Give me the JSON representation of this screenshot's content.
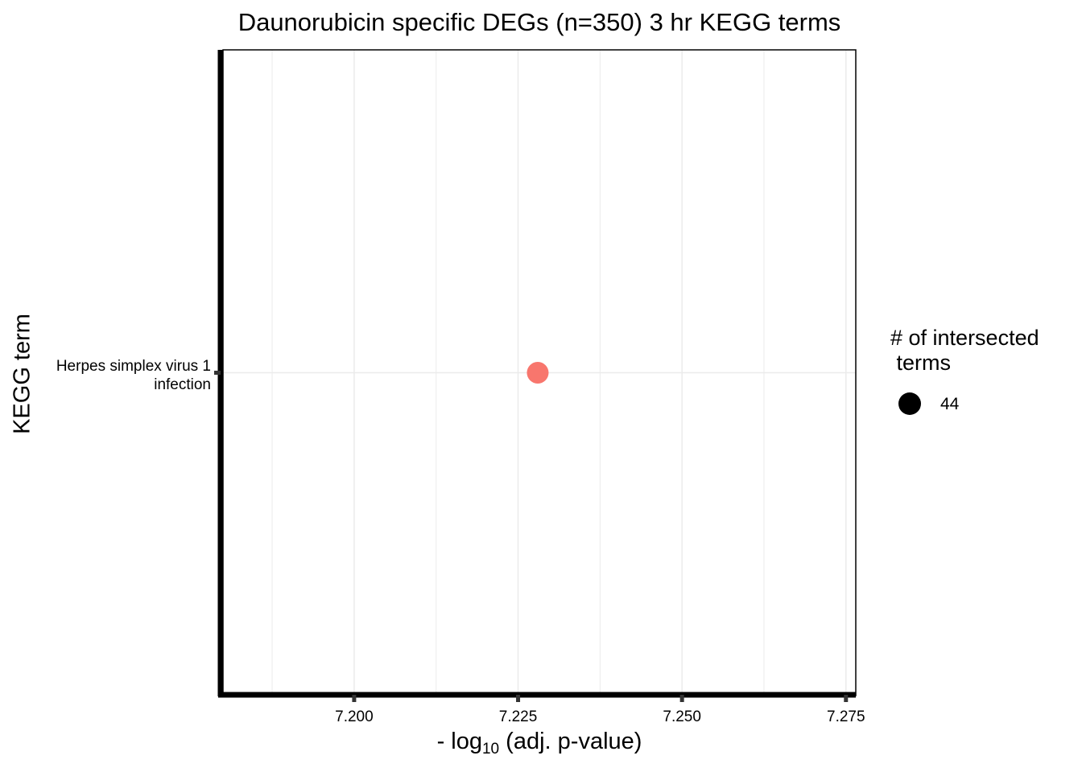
{
  "chart_data": {
    "type": "scatter",
    "title": "Daunorubicin specific DEGs (n=350) 3 hr KEGG terms",
    "xlabel_prefix": "- log",
    "xlabel_sub": "10",
    "xlabel_suffix": " (adj. p-value)",
    "ylabel": "KEGG term",
    "xlim": [
      7.18,
      7.2765
    ],
    "x_ticks": [
      7.2,
      7.225,
      7.25,
      7.275
    ],
    "x_tick_labels": [
      "7.200",
      "7.225",
      "7.250",
      "7.275"
    ],
    "categories": [
      "Herpes simplex virus 1\ninfection"
    ],
    "points": [
      {
        "term": "Herpes simplex virus 1\ninfection",
        "x": 7.228,
        "intersections": 44
      }
    ],
    "point_color": "#F8766D",
    "grid": true,
    "legend": {
      "title": "# of intersected\n terms",
      "entries": [
        {
          "label": "44",
          "color": "#000000"
        }
      ],
      "placement": "right"
    }
  }
}
